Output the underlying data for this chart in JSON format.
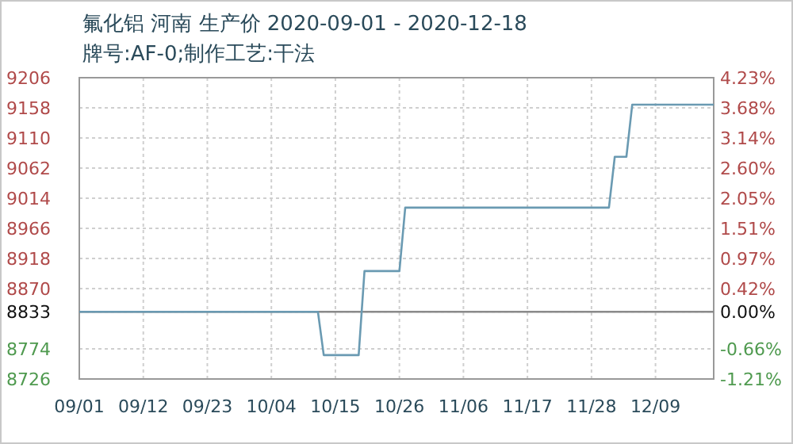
{
  "chart_data": {
    "type": "step",
    "title": "氟化铝 河南 生产价 2020-09-01 - 2020-12-18",
    "subtitle": "牌号:AF-0;制作工艺:干法",
    "x": [
      "2020-09-01",
      "2020-10-12",
      "2020-10-13",
      "2020-10-19",
      "2020-10-20",
      "2020-10-26",
      "2020-10-27",
      "2020-12-01",
      "2020-12-02",
      "2020-12-04",
      "2020-12-05",
      "2020-12-19"
    ],
    "series": [
      {
        "color": "#6a9ab2",
        "values": [
          8833,
          8833,
          8764,
          8764,
          8898,
          8898,
          8999,
          8999,
          9080,
          9080,
          9163,
          9163
        ]
      }
    ],
    "xlim": [
      "2020-09-01",
      "2020-12-19"
    ],
    "xticks": [
      {
        "value": "2020-09-01",
        "label": "09/01"
      },
      {
        "value": "2020-09-12",
        "label": "09/12"
      },
      {
        "value": "2020-09-23",
        "label": "09/23"
      },
      {
        "value": "2020-10-04",
        "label": "10/04"
      },
      {
        "value": "2020-10-15",
        "label": "10/15"
      },
      {
        "value": "2020-10-26",
        "label": "10/26"
      },
      {
        "value": "2020-11-06",
        "label": "11/06"
      },
      {
        "value": "2020-11-17",
        "label": "11/17"
      },
      {
        "value": "2020-11-28",
        "label": "11/28"
      },
      {
        "value": "2020-12-09",
        "label": "12/09"
      }
    ],
    "ylim": [
      8726,
      9206
    ],
    "yticks": [
      8726,
      8774,
      8833,
      8870,
      8918,
      8966,
      9014,
      9062,
      9110,
      9158,
      9206
    ],
    "y2lim": [
      -1.21,
      4.23
    ],
    "y2ticks": [
      {
        "value": -1.21,
        "label": "-1.21%"
      },
      {
        "value": -0.66,
        "label": "-0.66%"
      },
      {
        "value": 0,
        "label": "0.00%"
      },
      {
        "value": 0.42,
        "label": "0.42%"
      },
      {
        "value": 0.97,
        "label": "0.97%"
      },
      {
        "value": 1.51,
        "label": "1.51%"
      },
      {
        "value": 2.05,
        "label": "2.05%"
      },
      {
        "value": 2.6,
        "label": "2.60%"
      },
      {
        "value": 3.14,
        "label": "3.14%"
      },
      {
        "value": 3.68,
        "label": "3.68%"
      },
      {
        "value": 4.23,
        "label": "4.23%"
      }
    ],
    "ref_lines": [
      {
        "axis": "y",
        "value": 8833,
        "color": "#8a8a8a"
      }
    ],
    "grid": true
  }
}
